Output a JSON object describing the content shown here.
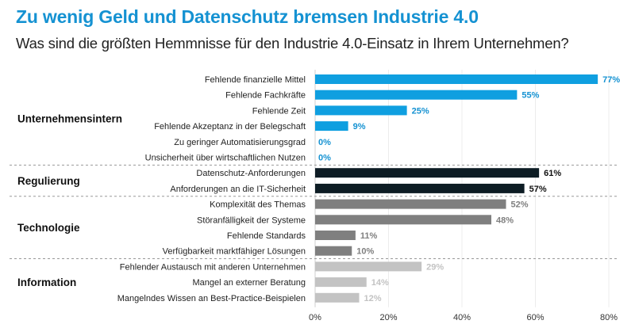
{
  "title": "Zu wenig Geld und Datenschutz bremsen Industrie 4.0",
  "subtitle": "Was sind die größten Hemmnisse für den Industrie 4.0-Einsatz in Ihrem Unternehmen?",
  "chart_data": {
    "type": "bar",
    "orientation": "horizontal",
    "xlim": [
      0,
      80
    ],
    "x_ticks": [
      "0%",
      "20%",
      "40%",
      "60%",
      "80%"
    ],
    "x_tick_values": [
      0,
      20,
      40,
      60,
      80
    ],
    "grid": true,
    "groups": [
      {
        "name": "Unternehmensintern",
        "color": "#0f9fe0",
        "label_color": "#1592d2",
        "categories": [
          "Fehlende finanzielle Mittel",
          "Fehlende Fachkräfte",
          "Fehlende Zeit",
          "Fehlende Akzeptanz in der Belegschaft",
          "Zu geringer Automatisierungsgrad",
          "Unsicherheit über wirtschaftlichen Nutzen"
        ],
        "values": [
          77,
          55,
          25,
          9,
          0,
          0
        ],
        "labels": [
          "77%",
          "55%",
          "25%",
          "9%",
          "0%",
          "0%"
        ]
      },
      {
        "name": "Regulierung",
        "color": "#0d1c24",
        "label_color": "#111111",
        "categories": [
          "Datenschutz-Anforderungen",
          "Anforderungen an die IT-Sicherheit"
        ],
        "values": [
          61,
          57
        ],
        "labels": [
          "61%",
          "57%"
        ]
      },
      {
        "name": "Technologie",
        "color": "#7f7f7f",
        "label_color": "#7f7f7f",
        "categories": [
          "Komplexität des Themas",
          "Störanfälligkeit der Systeme",
          "Fehlende Standards",
          "Verfügbarkeit marktfähiger Lösungen"
        ],
        "values": [
          52,
          48,
          11,
          10
        ],
        "labels": [
          "52%",
          "48%",
          "11%",
          "10%"
        ]
      },
      {
        "name": "Information",
        "color": "#c3c3c3",
        "label_color": "#c3c3c3",
        "categories": [
          "Fehlender Austausch mit anderen Unternehmen",
          "Mangel an externer Beratung",
          "Mangelndes Wissen an Best-Practice-Beispielen"
        ],
        "values": [
          29,
          14,
          12
        ],
        "labels": [
          "29%",
          "14%",
          "12%"
        ]
      }
    ]
  }
}
